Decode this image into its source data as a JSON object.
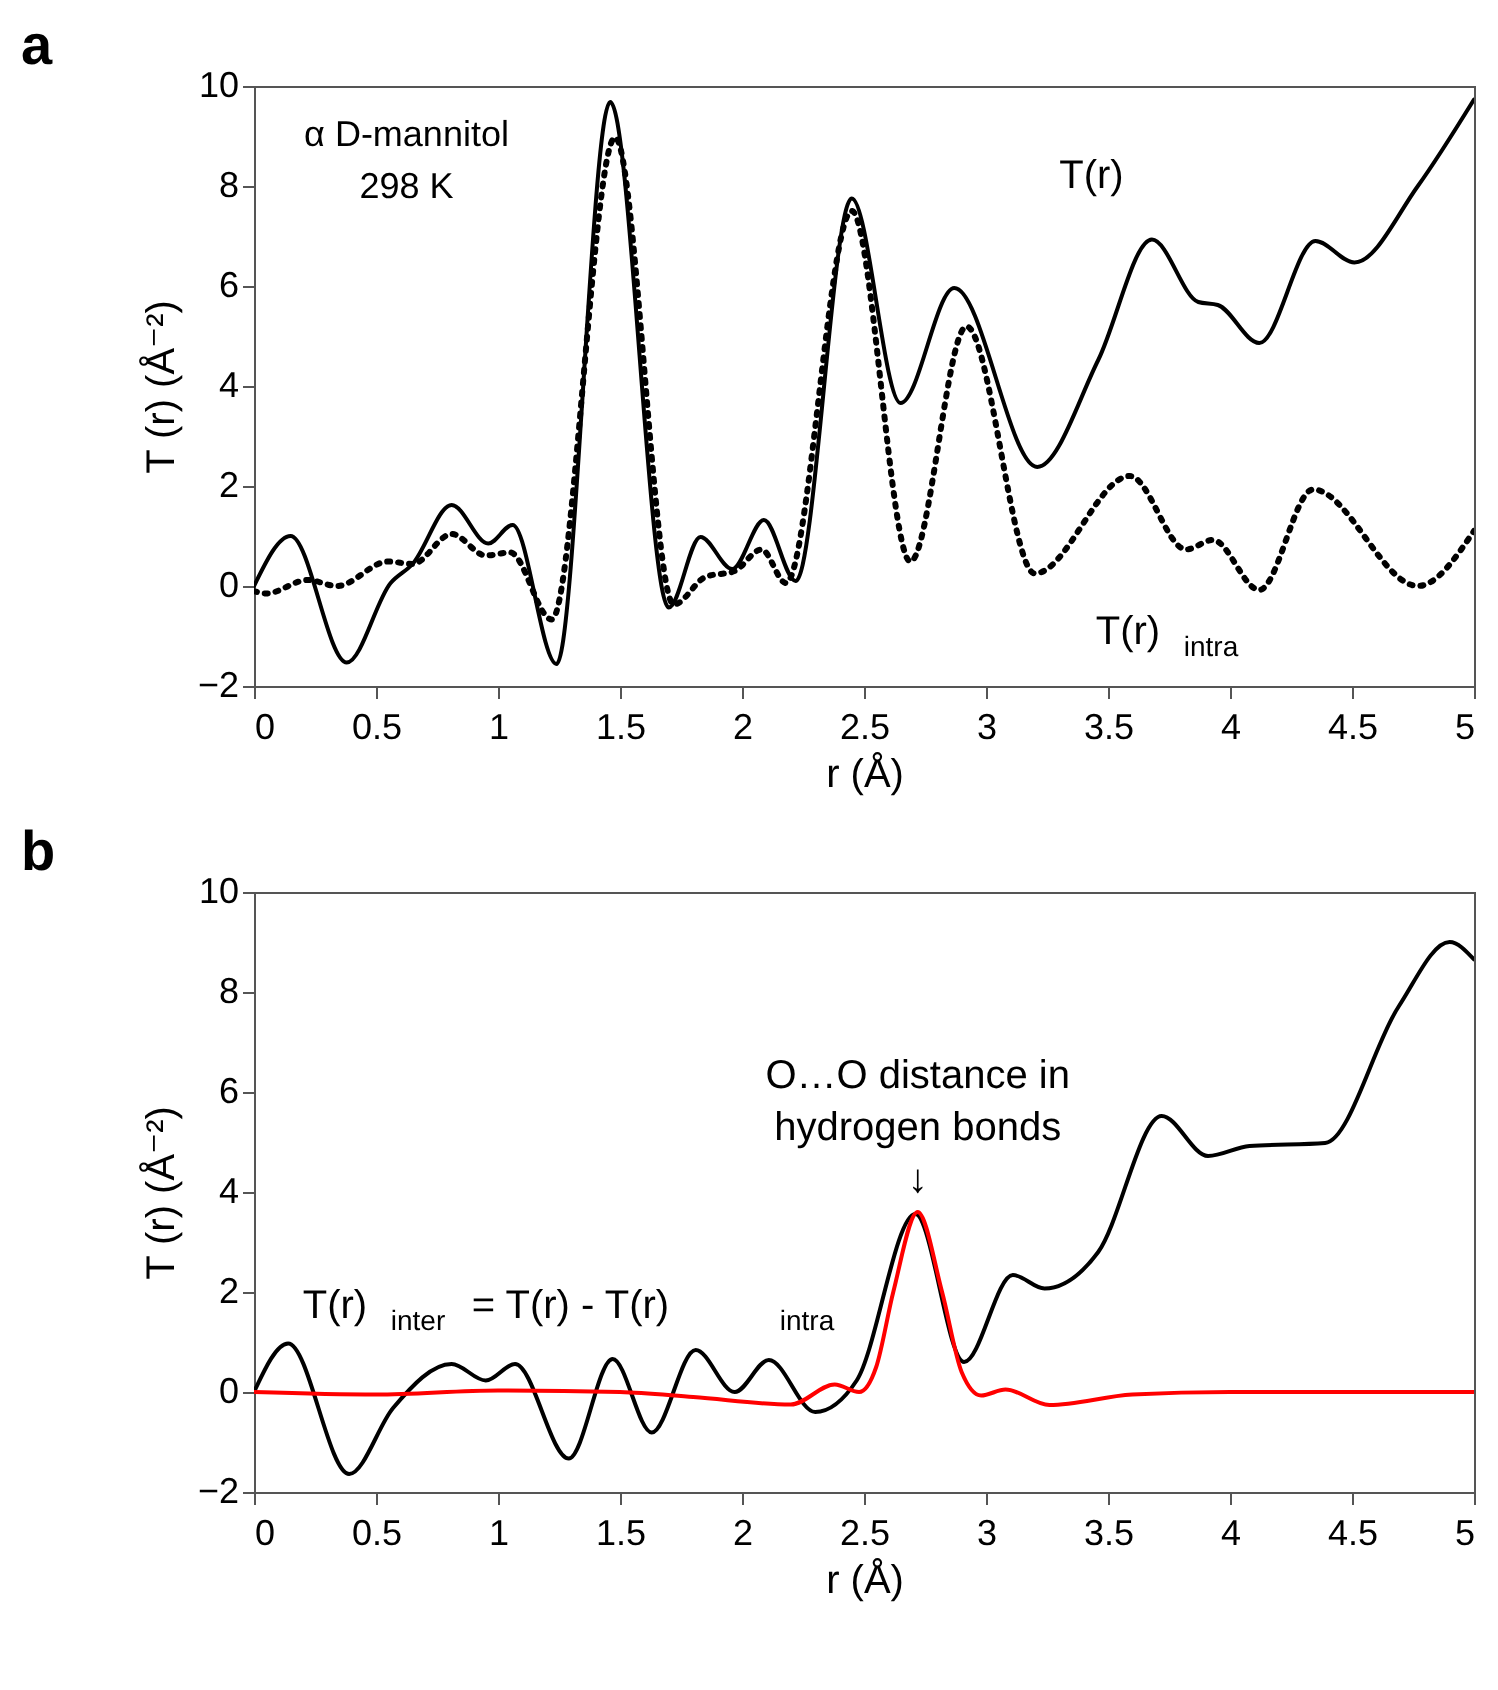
{
  "chart_data": [
    {
      "type": "line",
      "title": "a",
      "xlabel": "r (Å)",
      "ylabel": "T (r) (Å⁻²)",
      "xlim": [
        0,
        5
      ],
      "xticks": [
        0,
        0.5,
        1,
        1.5,
        2,
        2.5,
        3,
        3.5,
        4,
        4.5,
        5
      ],
      "ylim": [
        -2,
        10
      ],
      "yticks": [
        -2,
        0,
        2,
        4,
        6,
        8,
        10
      ],
      "grid": false,
      "legend": false,
      "marker": "none",
      "annotations": [
        "α D-mannitol",
        "298 K"
      ],
      "series": [
        {
          "name": "T(r)",
          "color": "#000000",
          "line_style": "solid",
          "x": [
            0,
            0.15,
            0.38,
            0.56,
            0.65,
            0.81,
            0.96,
            1.06,
            1.24,
            1.46,
            1.7,
            1.83,
            1.96,
            2.09,
            2.22,
            2.45,
            2.65,
            2.87,
            3.21,
            3.46,
            3.68,
            3.87,
            3.95,
            4.12,
            4.35,
            4.51,
            4.77,
            5
          ],
          "values": [
            0,
            1.0,
            -1.53,
            0.06,
            0.44,
            1.62,
            0.85,
            1.22,
            -1.56,
            9.68,
            -0.43,
            0.98,
            0.34,
            1.32,
            0.1,
            7.75,
            3.66,
            5.96,
            2.38,
            4.52,
            6.93,
            5.68,
            5.62,
            4.86,
            6.9,
            6.47,
            8.0,
            9.73
          ]
        },
        {
          "name": "T(r)$_{intra}$",
          "color": "#000000",
          "line_style": "dotted",
          "x": [
            0,
            0.05,
            0.22,
            0.34,
            0.55,
            0.65,
            0.81,
            0.95,
            1.05,
            1.22,
            1.48,
            1.72,
            1.85,
            1.97,
            2.08,
            2.18,
            2.45,
            2.69,
            2.92,
            3.2,
            3.59,
            3.82,
            3.93,
            4.12,
            4.34,
            4.77,
            5
          ],
          "values": [
            -0.1,
            -0.15,
            0.12,
            0,
            0.49,
            0.44,
            1.04,
            0.61,
            0.67,
            -0.67,
            8.97,
            -0.37,
            0.18,
            0.3,
            0.73,
            0.06,
            7.5,
            0.49,
            5.19,
            0.25,
            2.2,
            0.73,
            0.92,
            -0.08,
            1.93,
            0,
            1.1
          ]
        }
      ]
    },
    {
      "type": "line",
      "title": "b",
      "xlabel": "r (Å)",
      "ylabel": "T (r) (Å⁻²)",
      "xlim": [
        0,
        5
      ],
      "xticks": [
        0,
        0.5,
        1,
        1.5,
        2,
        2.5,
        3,
        3.5,
        4,
        4.5,
        5
      ],
      "ylim": [
        -2,
        10
      ],
      "yticks": [
        -2,
        0,
        2,
        4,
        6,
        8,
        10
      ],
      "grid": false,
      "legend": false,
      "marker": "none",
      "annotations": [
        {
          "text": "O…O distance in\nhydrogen bonds\n↓",
          "x": 2.72,
          "y": 3.6
        }
      ],
      "series": [
        {
          "name": "T(r)$_{inter}$ = T(r) - T(r)$_{intra}$",
          "color": "#000000",
          "line_style": "solid",
          "x": [
            0,
            0.14,
            0.39,
            0.57,
            0.81,
            0.95,
            1.07,
            1.29,
            1.47,
            1.63,
            1.81,
            1.97,
            2.11,
            2.3,
            2.47,
            2.71,
            2.91,
            3.11,
            3.24,
            3.46,
            3.72,
            3.91,
            4.08,
            4.39,
            4.69,
            4.9,
            5
          ],
          "values": [
            0,
            0.97,
            -1.64,
            -0.32,
            0.56,
            0.23,
            0.56,
            -1.33,
            0.66,
            -0.81,
            0.84,
            0,
            0.64,
            -0.4,
            0.23,
            3.56,
            0.6,
            2.34,
            2.07,
            2.8,
            5.52,
            4.72,
            4.92,
            4.98,
            7.7,
            9.0,
            8.65
          ]
        },
        {
          "color": "#ff0000",
          "line_style": "solid",
          "x": [
            0,
            0.5,
            1,
            1.5,
            1.8,
            2.2,
            2.38,
            2.48,
            2.55,
            2.62,
            2.72,
            2.82,
            2.9,
            2.98,
            3.08,
            3.26,
            3.6,
            4,
            5
          ],
          "values": [
            0,
            -0.05,
            0.03,
            0,
            -0.1,
            -0.25,
            0.15,
            0,
            0.5,
            2.0,
            3.6,
            2.0,
            0.4,
            -0.07,
            0.05,
            -0.26,
            -0.05,
            0,
            0
          ]
        }
      ]
    }
  ]
}
